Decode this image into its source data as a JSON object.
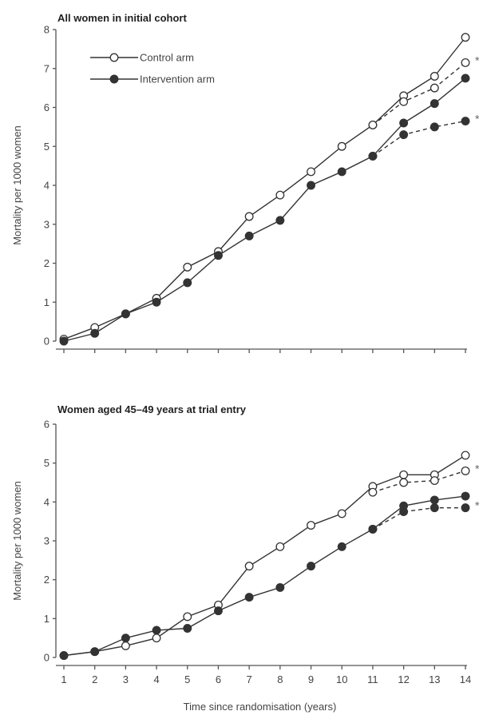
{
  "chart_data": [
    {
      "type": "line",
      "title": "All women in initial cohort",
      "xlabel": "",
      "ylabel": "Mortality per 1000 women",
      "xlim": [
        1,
        14
      ],
      "ylim": [
        0,
        8
      ],
      "yticks": [
        0,
        1,
        2,
        3,
        4,
        5,
        6,
        7,
        8
      ],
      "legend": {
        "placement": "top-left",
        "entries": [
          "Control arm",
          "Intervention arm"
        ]
      },
      "series": [
        {
          "name": "Control arm",
          "marker": "open-circle",
          "line": "solid",
          "x": [
            1,
            2,
            3,
            4,
            5,
            6,
            7,
            8,
            9,
            10,
            11,
            12,
            13,
            14
          ],
          "values": [
            0.05,
            0.35,
            0.7,
            1.1,
            1.9,
            2.3,
            3.2,
            3.75,
            4.35,
            5.0,
            5.55,
            6.3,
            6.8,
            7.8
          ]
        },
        {
          "name": "Intervention arm",
          "marker": "filled-circle",
          "line": "solid",
          "x": [
            1,
            2,
            3,
            4,
            5,
            6,
            7,
            8,
            9,
            10,
            11,
            12,
            13,
            14
          ],
          "values": [
            0.0,
            0.2,
            0.7,
            1.0,
            1.5,
            2.2,
            2.7,
            3.1,
            4.0,
            4.35,
            4.75,
            5.6,
            6.1,
            6.75
          ]
        },
        {
          "marker": "open-circle",
          "line": "dashed",
          "x": [
            11,
            12,
            13,
            14
          ],
          "values": [
            5.55,
            6.15,
            6.5,
            7.15
          ]
        },
        {
          "marker": "filled-circle",
          "line": "dashed",
          "x": [
            11,
            12,
            13,
            14
          ],
          "values": [
            4.75,
            5.3,
            5.5,
            5.65
          ]
        }
      ],
      "annotations": [
        "*",
        "*"
      ]
    },
    {
      "type": "line",
      "title": "Women aged 45–49 years at trial entry",
      "xlabel": "Time since randomisation (years)",
      "ylabel": "Mortality per 1000 women",
      "xlim": [
        1,
        14
      ],
      "ylim": [
        0,
        6
      ],
      "xticks": [
        1,
        2,
        3,
        4,
        5,
        6,
        7,
        8,
        9,
        10,
        11,
        12,
        13,
        14
      ],
      "yticks": [
        0,
        1,
        2,
        3,
        4,
        5,
        6
      ],
      "series": [
        {
          "name": "Control arm",
          "marker": "open-circle",
          "line": "solid",
          "x": [
            1,
            2,
            3,
            4,
            5,
            6,
            7,
            8,
            9,
            10,
            11,
            12,
            13,
            14
          ],
          "values": [
            0.05,
            0.15,
            0.3,
            0.5,
            1.05,
            1.35,
            2.35,
            2.85,
            3.4,
            3.7,
            4.4,
            4.7,
            4.7,
            5.2
          ]
        },
        {
          "name": "Intervention arm",
          "marker": "filled-circle",
          "line": "solid",
          "x": [
            1,
            2,
            3,
            4,
            5,
            6,
            7,
            8,
            9,
            10,
            11,
            12,
            13,
            14
          ],
          "values": [
            0.05,
            0.15,
            0.5,
            0.7,
            0.75,
            1.2,
            1.55,
            1.8,
            2.35,
            2.85,
            3.3,
            3.9,
            4.05,
            4.15
          ]
        },
        {
          "marker": "open-circle",
          "line": "dashed",
          "x": [
            11,
            12,
            13,
            14
          ],
          "values": [
            4.25,
            4.5,
            4.55,
            4.8
          ]
        },
        {
          "marker": "filled-circle",
          "line": "dashed",
          "x": [
            11,
            12,
            13,
            14
          ],
          "values": [
            3.3,
            3.75,
            3.85,
            3.85
          ]
        }
      ],
      "annotations": [
        "*",
        "*"
      ]
    }
  ]
}
